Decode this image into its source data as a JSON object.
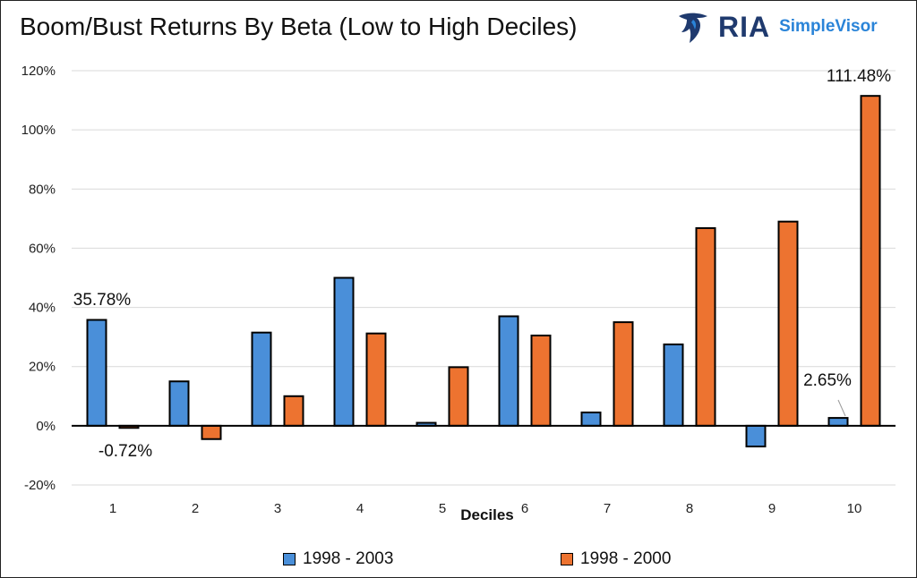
{
  "chart_data": {
    "type": "bar",
    "title": "Boom/Bust Returns By Beta (Low to High Deciles)",
    "xlabel": "Deciles",
    "ylabel": "",
    "ylim": [
      -20,
      120
    ],
    "yticks": [
      -20,
      0,
      20,
      40,
      60,
      80,
      100,
      120
    ],
    "ytick_labels": [
      "-20%",
      "0%",
      "20%",
      "40%",
      "60%",
      "80%",
      "100%",
      "120%"
    ],
    "categories": [
      "1",
      "2",
      "3",
      "4",
      "5",
      "6",
      "7",
      "8",
      "9",
      "10"
    ],
    "grid": true,
    "legend_position": "bottom",
    "series": [
      {
        "name": "1998 - 2003",
        "color": "#4a8fd9",
        "values": [
          35.78,
          15,
          31.5,
          50,
          1,
          37,
          4.5,
          27.5,
          -7,
          2.65
        ]
      },
      {
        "name": "1998 - 2000",
        "color": "#ed7330",
        "values": [
          -0.72,
          -4.5,
          10,
          31.2,
          19.8,
          30.5,
          35,
          66.8,
          69,
          111.48
        ]
      }
    ],
    "data_labels": [
      "35.78%",
      "-0.72%",
      "2.65%",
      "111.48%"
    ]
  },
  "logo": {
    "brand": "RIA",
    "product": "SimpleVisor",
    "icon": "eagle-logo-icon",
    "brand_color": "#1f3a6e",
    "product_color": "#2a84d8"
  }
}
